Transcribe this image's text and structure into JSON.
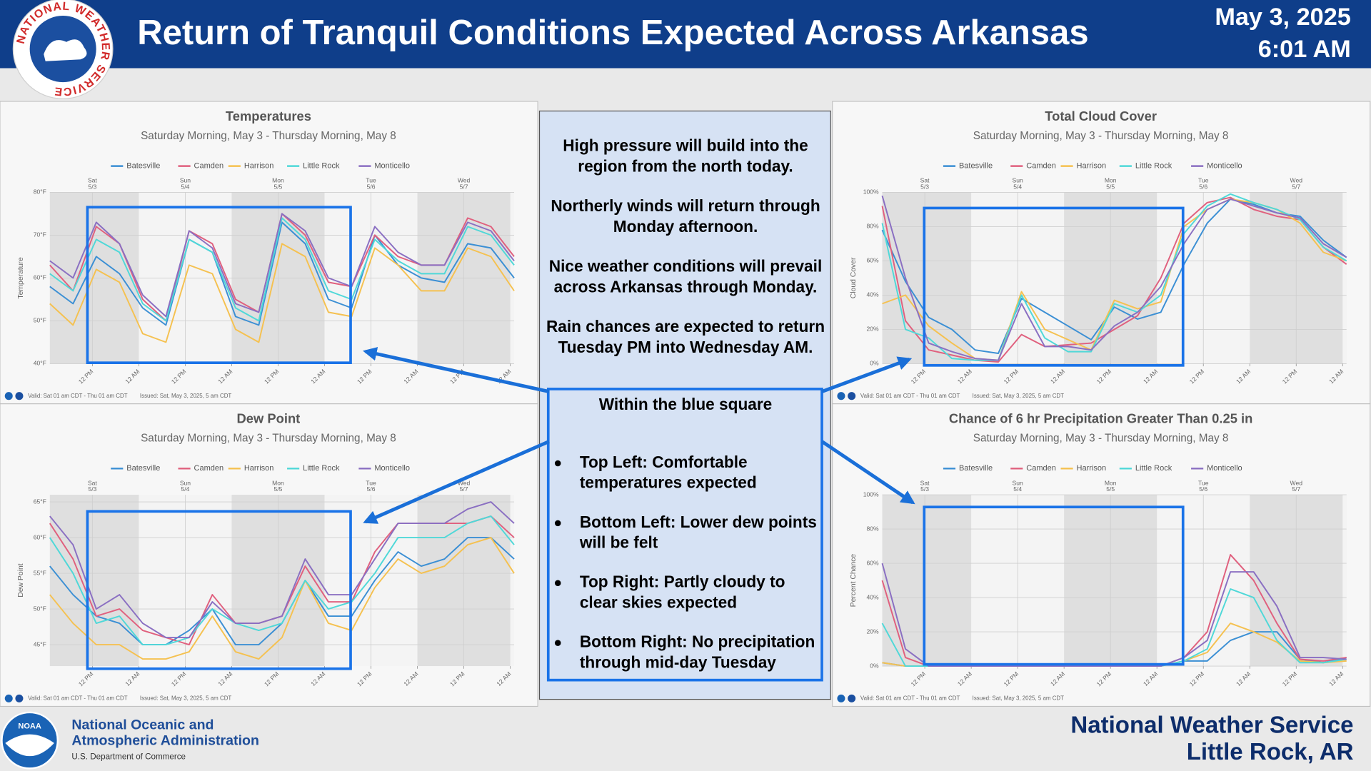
{
  "header": {
    "title": "Return of Tranquil Conditions Expected Across Arkansas",
    "date": "May 3, 2025",
    "time": "6:01 AM",
    "logo_text": "NATIONAL WEATHER SERVICE"
  },
  "panel": {
    "paragraphs": [
      [
        "High pressure will build into the",
        "region from the north today."
      ],
      [
        "Northerly winds will return through",
        "Monday afternoon."
      ],
      [
        "Nice weather conditions will prevail",
        "across Arkansas through Monday."
      ],
      [
        "Rain chances are expected to return",
        "Tuesday PM into Wednesday AM."
      ]
    ],
    "box_title": "Within the blue square",
    "bullets": [
      [
        "Top Left: Comfortable",
        "temperatures expected"
      ],
      [
        "Bottom Left: Lower dew points",
        "will be felt"
      ],
      [
        "Top Right: Partly cloudy to",
        "clear skies expected"
      ],
      [
        "Bottom Right: No precipitation",
        "through mid-day Tuesday"
      ]
    ]
  },
  "footer": {
    "noaa_logo_text": "NOAA",
    "noaa_lines": [
      "National Oceanic and",
      "Atmospheric Administration",
      "U.S. Department of Commerce"
    ],
    "office": [
      "National Weather Service",
      "Little Rock, AR"
    ]
  },
  "chart_data": [
    {
      "type": "line",
      "title": "Temperatures",
      "subtitle": "Saturday Morning, May 3 - Thursday Morning, May 8",
      "y_label": "Temperature",
      "footer_valid": "Valid: Sat 01 am CDT - Thu 01 am CDT",
      "footer_issued": "Issued: Sat, May 3, 2025, 5 am CDT",
      "x": [
        1,
        7,
        13,
        19,
        25,
        31,
        37,
        43,
        49,
        55,
        61,
        67,
        73,
        79,
        85,
        91,
        97,
        103,
        109,
        115,
        121
      ],
      "xlim": [
        1,
        121
      ],
      "xticks": [
        {
          "value": 12,
          "label": "12 PM"
        },
        {
          "value": 24,
          "label": "12 AM"
        },
        {
          "value": 36,
          "label": "12 PM"
        },
        {
          "value": 48,
          "label": "12 AM"
        },
        {
          "value": 60,
          "label": "12 PM"
        },
        {
          "value": 72,
          "label": "12 AM"
        },
        {
          "value": 84,
          "label": "12 PM"
        },
        {
          "value": 96,
          "label": "12 AM"
        },
        {
          "value": 108,
          "label": "12 PM"
        },
        {
          "value": 120,
          "label": "12 AM"
        }
      ],
      "day_ticks": [
        {
          "value": 12,
          "day": "Sat",
          "date": "5/3"
        },
        {
          "value": 36,
          "day": "Sun",
          "date": "5/4"
        },
        {
          "value": 60,
          "day": "Mon",
          "date": "5/5"
        },
        {
          "value": 84,
          "day": "Tue",
          "date": "5/6"
        },
        {
          "value": 108,
          "day": "Wed",
          "date": "5/7"
        }
      ],
      "ylim": [
        40,
        80
      ],
      "yticks": [
        {
          "value": 40,
          "label": "40°F"
        },
        {
          "value": 50,
          "label": "50°F"
        },
        {
          "value": 60,
          "label": "60°F"
        },
        {
          "value": 70,
          "label": "70°F"
        },
        {
          "value": 80,
          "label": "80°F"
        }
      ],
      "series": [
        {
          "name": "Batesville",
          "color": "#3b8fd4",
          "values": [
            58,
            54,
            65,
            61,
            53,
            49,
            69,
            66,
            51,
            49,
            73,
            68,
            55,
            53,
            70,
            63,
            60,
            59,
            68,
            67,
            60
          ]
        },
        {
          "name": "Camden",
          "color": "#e0607e",
          "values": [
            63,
            57,
            72,
            68,
            55,
            50,
            71,
            68,
            55,
            52,
            75,
            70,
            59,
            58,
            70,
            65,
            63,
            63,
            74,
            72,
            65
          ]
        },
        {
          "name": "Harrison",
          "color": "#f5c150",
          "values": [
            54,
            49,
            62,
            59,
            47,
            45,
            63,
            61,
            48,
            45,
            68,
            65,
            52,
            51,
            67,
            63,
            57,
            57,
            67,
            65,
            57
          ]
        },
        {
          "name": "Little Rock",
          "color": "#4fd8d8",
          "values": [
            61,
            57,
            69,
            66,
            54,
            50,
            69,
            66,
            53,
            50,
            74,
            69,
            57,
            55,
            69,
            64,
            61,
            61,
            72,
            70,
            63
          ]
        },
        {
          "name": "Monticello",
          "color": "#8a6fc2",
          "values": [
            64,
            60,
            73,
            68,
            56,
            51,
            71,
            67,
            54,
            52,
            75,
            71,
            60,
            58,
            72,
            66,
            63,
            63,
            73,
            71,
            64
          ]
        }
      ]
    },
    {
      "type": "line",
      "title": "Dew Point",
      "subtitle": "Saturday Morning, May 3 - Thursday Morning, May 8",
      "y_label": "Dew Point",
      "footer_valid": "Valid: Sat 01 am CDT - Thu 01 am CDT",
      "footer_issued": "Issued: Sat, May 3, 2025, 5 am CDT",
      "x": [
        1,
        7,
        13,
        19,
        25,
        31,
        37,
        43,
        49,
        55,
        61,
        67,
        73,
        79,
        85,
        91,
        97,
        103,
        109,
        115,
        121
      ],
      "xlim": [
        1,
        121
      ],
      "xticks": [
        {
          "value": 12,
          "label": "12 PM"
        },
        {
          "value": 24,
          "label": "12 AM"
        },
        {
          "value": 36,
          "label": "12 PM"
        },
        {
          "value": 48,
          "label": "12 AM"
        },
        {
          "value": 60,
          "label": "12 PM"
        },
        {
          "value": 72,
          "label": "12 AM"
        },
        {
          "value": 84,
          "label": "12 PM"
        },
        {
          "value": 96,
          "label": "12 AM"
        },
        {
          "value": 108,
          "label": "12 PM"
        },
        {
          "value": 120,
          "label": "12 AM"
        }
      ],
      "day_ticks": [
        {
          "value": 12,
          "day": "Sat",
          "date": "5/3"
        },
        {
          "value": 36,
          "day": "Sun",
          "date": "5/4"
        },
        {
          "value": 60,
          "day": "Mon",
          "date": "5/5"
        },
        {
          "value": 84,
          "day": "Tue",
          "date": "5/6"
        },
        {
          "value": 108,
          "day": "Wed",
          "date": "5/7"
        }
      ],
      "ylim": [
        42,
        66
      ],
      "yticks": [
        {
          "value": 45,
          "label": "45°F"
        },
        {
          "value": 50,
          "label": "50°F"
        },
        {
          "value": 55,
          "label": "55°F"
        },
        {
          "value": 60,
          "label": "60°F"
        },
        {
          "value": 65,
          "label": "65°F"
        }
      ],
      "series": [
        {
          "name": "Batesville",
          "color": "#3b8fd4",
          "values": [
            56,
            52,
            49,
            48,
            45,
            45,
            47,
            50,
            45,
            45,
            48,
            54,
            49,
            49,
            54,
            58,
            56,
            57,
            60,
            60,
            57
          ]
        },
        {
          "name": "Camden",
          "color": "#e0607e",
          "values": [
            62,
            57,
            49,
            50,
            47,
            46,
            45,
            52,
            48,
            48,
            49,
            56,
            51,
            51,
            58,
            62,
            62,
            62,
            62,
            63,
            60
          ]
        },
        {
          "name": "Harrison",
          "color": "#f5c150",
          "values": [
            52,
            48,
            45,
            45,
            43,
            43,
            44,
            49,
            44,
            43,
            46,
            54,
            48,
            47,
            53,
            57,
            55,
            56,
            59,
            60,
            55
          ]
        },
        {
          "name": "Little Rock",
          "color": "#4fd8d8",
          "values": [
            60,
            55,
            48,
            49,
            45,
            45,
            46,
            50,
            48,
            47,
            48,
            54,
            50,
            51,
            55,
            60,
            60,
            60,
            62,
            63,
            59
          ]
        },
        {
          "name": "Monticello",
          "color": "#8a6fc2",
          "values": [
            63,
            59,
            50,
            52,
            48,
            46,
            46,
            51,
            48,
            48,
            49,
            57,
            52,
            52,
            57,
            62,
            62,
            62,
            64,
            65,
            62
          ]
        }
      ]
    },
    {
      "type": "line",
      "title": "Total Cloud Cover",
      "subtitle": "Saturday Morning, May 3 - Thursday Morning, May 8",
      "y_label": "Cloud Cover",
      "footer_valid": "Valid: Sat 01 am CDT - Thu 01 am CDT",
      "footer_issued": "Issued: Sat, May 3, 2025, 5 am CDT",
      "x": [
        1,
        7,
        13,
        19,
        25,
        31,
        37,
        43,
        49,
        55,
        61,
        67,
        73,
        79,
        85,
        91,
        97,
        103,
        109,
        115,
        121
      ],
      "xlim": [
        1,
        121
      ],
      "xticks": [
        {
          "value": 12,
          "label": "12 PM"
        },
        {
          "value": 24,
          "label": "12 AM"
        },
        {
          "value": 36,
          "label": "12 PM"
        },
        {
          "value": 48,
          "label": "12 AM"
        },
        {
          "value": 60,
          "label": "12 PM"
        },
        {
          "value": 72,
          "label": "12 AM"
        },
        {
          "value": 84,
          "label": "12 PM"
        },
        {
          "value": 96,
          "label": "12 AM"
        },
        {
          "value": 108,
          "label": "12 PM"
        },
        {
          "value": 120,
          "label": "12 AM"
        }
      ],
      "day_ticks": [
        {
          "value": 12,
          "day": "Sat",
          "date": "5/3"
        },
        {
          "value": 36,
          "day": "Sun",
          "date": "5/4"
        },
        {
          "value": 60,
          "day": "Mon",
          "date": "5/5"
        },
        {
          "value": 84,
          "day": "Tue",
          "date": "5/6"
        },
        {
          "value": 108,
          "day": "Wed",
          "date": "5/7"
        }
      ],
      "ylim": [
        0,
        100
      ],
      "yticks": [
        {
          "value": 0,
          "label": "0%"
        },
        {
          "value": 20,
          "label": "20%"
        },
        {
          "value": 40,
          "label": "40%"
        },
        {
          "value": 60,
          "label": "60%"
        },
        {
          "value": 80,
          "label": "80%"
        },
        {
          "value": 100,
          "label": "100%"
        }
      ],
      "series": [
        {
          "name": "Batesville",
          "color": "#3b8fd4",
          "values": [
            78,
            48,
            27,
            20,
            8,
            6,
            38,
            30,
            22,
            14,
            33,
            26,
            30,
            58,
            82,
            96,
            93,
            88,
            86,
            72,
            62
          ]
        },
        {
          "name": "Camden",
          "color": "#e0607e",
          "values": [
            92,
            25,
            8,
            5,
            2,
            1,
            17,
            10,
            11,
            12,
            20,
            28,
            50,
            82,
            94,
            97,
            90,
            86,
            84,
            68,
            58
          ]
        },
        {
          "name": "Harrison",
          "color": "#f5c150",
          "values": [
            35,
            40,
            22,
            12,
            3,
            2,
            42,
            20,
            14,
            8,
            37,
            32,
            36,
            80,
            90,
            96,
            94,
            90,
            82,
            65,
            60
          ]
        },
        {
          "name": "Little Rock",
          "color": "#4fd8d8",
          "values": [
            82,
            20,
            15,
            3,
            2,
            2,
            40,
            15,
            7,
            7,
            35,
            30,
            40,
            76,
            92,
            99,
            94,
            90,
            84,
            68,
            60
          ]
        },
        {
          "name": "Monticello",
          "color": "#8a6fc2",
          "values": [
            98,
            50,
            12,
            7,
            3,
            2,
            35,
            10,
            10,
            8,
            22,
            30,
            45,
            70,
            90,
            96,
            92,
            88,
            85,
            70,
            62
          ]
        }
      ]
    },
    {
      "type": "line",
      "title": "Chance of 6 hr Precipitation Greater Than 0.25 in",
      "subtitle": "Saturday Morning, May 3 - Thursday Morning, May 8",
      "y_label": "Percent Chance",
      "footer_valid": "Valid: Sat 01 am CDT - Thu 01 am CDT",
      "footer_issued": "Issued: Sat, May 3, 2025, 5 am CDT",
      "x": [
        1,
        7,
        13,
        19,
        25,
        31,
        37,
        43,
        49,
        55,
        61,
        67,
        73,
        79,
        85,
        91,
        97,
        103,
        109,
        115,
        121
      ],
      "xlim": [
        1,
        121
      ],
      "xticks": [
        {
          "value": 12,
          "label": "12 PM"
        },
        {
          "value": 24,
          "label": "12 AM"
        },
        {
          "value": 36,
          "label": "12 PM"
        },
        {
          "value": 48,
          "label": "12 AM"
        },
        {
          "value": 60,
          "label": "12 PM"
        },
        {
          "value": 72,
          "label": "12 AM"
        },
        {
          "value": 84,
          "label": "12 PM"
        },
        {
          "value": 96,
          "label": "12 AM"
        },
        {
          "value": 108,
          "label": "12 PM"
        },
        {
          "value": 120,
          "label": "12 AM"
        }
      ],
      "day_ticks": [
        {
          "value": 12,
          "day": "Sat",
          "date": "5/3"
        },
        {
          "value": 36,
          "day": "Sun",
          "date": "5/4"
        },
        {
          "value": 60,
          "day": "Mon",
          "date": "5/5"
        },
        {
          "value": 84,
          "day": "Tue",
          "date": "5/6"
        },
        {
          "value": 108,
          "day": "Wed",
          "date": "5/7"
        }
      ],
      "ylim": [
        0,
        100
      ],
      "yticks": [
        {
          "value": 0,
          "label": "0%"
        },
        {
          "value": 20,
          "label": "20%"
        },
        {
          "value": 40,
          "label": "40%"
        },
        {
          "value": 60,
          "label": "60%"
        },
        {
          "value": 80,
          "label": "80%"
        },
        {
          "value": 100,
          "label": "100%"
        }
      ],
      "series": [
        {
          "name": "Batesville",
          "color": "#3b8fd4",
          "values": [
            2,
            0,
            0,
            0,
            0,
            0,
            0,
            0,
            0,
            0,
            0,
            0,
            0,
            3,
            3,
            15,
            20,
            20,
            4,
            2,
            5
          ]
        },
        {
          "name": "Camden",
          "color": "#e0607e",
          "values": [
            50,
            5,
            0,
            0,
            0,
            0,
            0,
            0,
            0,
            0,
            0,
            0,
            0,
            5,
            20,
            65,
            50,
            25,
            4,
            3,
            5
          ]
        },
        {
          "name": "Harrison",
          "color": "#f5c150",
          "values": [
            2,
            0,
            0,
            0,
            0,
            0,
            0,
            0,
            0,
            0,
            0,
            0,
            0,
            3,
            8,
            25,
            20,
            14,
            3,
            2,
            3
          ]
        },
        {
          "name": "Little Rock",
          "color": "#4fd8d8",
          "values": [
            25,
            0,
            0,
            0,
            0,
            0,
            0,
            0,
            0,
            0,
            0,
            0,
            0,
            3,
            10,
            45,
            40,
            15,
            2,
            2,
            4
          ]
        },
        {
          "name": "Monticello",
          "color": "#8a6fc2",
          "values": [
            60,
            10,
            0,
            0,
            0,
            0,
            0,
            0,
            0,
            0,
            0,
            0,
            0,
            5,
            15,
            55,
            55,
            35,
            5,
            5,
            4
          ]
        }
      ]
    }
  ]
}
